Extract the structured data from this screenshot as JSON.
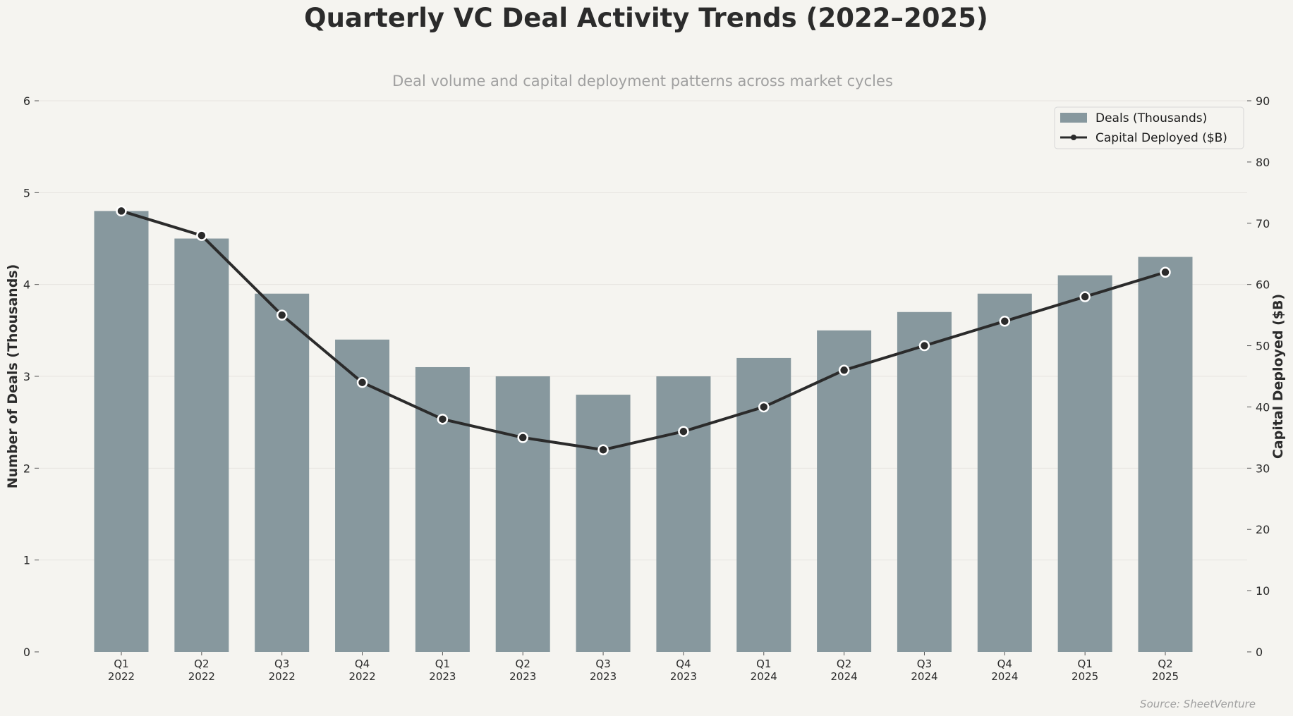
{
  "chart_data": {
    "type": "bar+line",
    "title": "Quarterly VC Deal Activity Trends (2022–2025)",
    "subtitle": "Deal volume and capital deployment patterns across market cycles",
    "source": "Source: SheetVenture",
    "categories": [
      [
        "Q1",
        "2022"
      ],
      [
        "Q2",
        "2022"
      ],
      [
        "Q3",
        "2022"
      ],
      [
        "Q4",
        "2022"
      ],
      [
        "Q1",
        "2023"
      ],
      [
        "Q2",
        "2023"
      ],
      [
        "Q3",
        "2023"
      ],
      [
        "Q4",
        "2023"
      ],
      [
        "Q1",
        "2024"
      ],
      [
        "Q2",
        "2024"
      ],
      [
        "Q3",
        "2024"
      ],
      [
        "Q4",
        "2024"
      ],
      [
        "Q1",
        "2025"
      ],
      [
        "Q2",
        "2025"
      ]
    ],
    "series": [
      {
        "name": "Deals (Thousands)",
        "type": "bar",
        "axis": "left",
        "color": "#87989e",
        "values": [
          4.8,
          4.5,
          3.9,
          3.4,
          3.1,
          3.0,
          2.8,
          3.0,
          3.2,
          3.5,
          3.7,
          3.9,
          4.1,
          4.3
        ]
      },
      {
        "name": "Capital Deployed ($B)",
        "type": "line",
        "axis": "right",
        "color": "#2b2b2b",
        "values": [
          72,
          68,
          55,
          44,
          38,
          35,
          33,
          36,
          40,
          46,
          50,
          54,
          58,
          62
        ]
      }
    ],
    "ylabel": "Number of Deals (Thousands)",
    "ylabel_right": "Capital Deployed ($B)",
    "ylim": [
      0,
      6
    ],
    "ylim_right": [
      0,
      90
    ],
    "yticks": [
      0,
      1,
      2,
      3,
      4,
      5,
      6
    ],
    "yticks_right": [
      0,
      10,
      20,
      30,
      40,
      50,
      60,
      70,
      80,
      90
    ],
    "grid": true,
    "legend_position": "top-right"
  }
}
